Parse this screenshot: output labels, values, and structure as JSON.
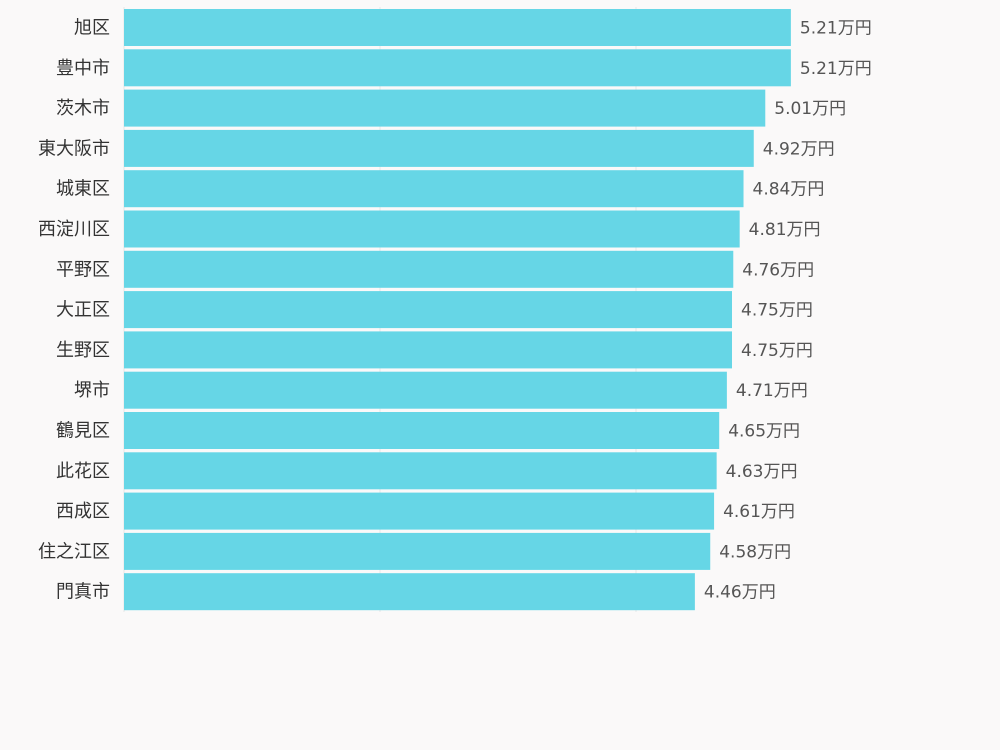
{
  "chart_data": {
    "type": "bar",
    "orientation": "horizontal",
    "categories": [
      "旭区",
      "豊中市",
      "茨木市",
      "東大阪市",
      "城東区",
      "西淀川区",
      "平野区",
      "大正区",
      "生野区",
      "堺市",
      "鶴見区",
      "此花区",
      "西成区",
      "住之江区",
      "門真市"
    ],
    "values": [
      5.21,
      5.21,
      5.01,
      4.92,
      4.84,
      4.81,
      4.76,
      4.75,
      4.75,
      4.71,
      4.65,
      4.63,
      4.61,
      4.58,
      4.46
    ],
    "value_labels": [
      "5.21万円",
      "5.21万円",
      "5.01万円",
      "4.92万円",
      "4.84万円",
      "4.81万円",
      "4.76万円",
      "4.75万円",
      "4.75万円",
      "4.71万円",
      "4.65万円",
      "4.63万円",
      "4.61万円",
      "4.58万円",
      "4.46万円"
    ],
    "unit": "万円",
    "title": "",
    "xlabel": "",
    "ylabel": "",
    "xlim": [
      0,
      5.5
    ],
    "grid": true,
    "legend": "none",
    "bar_color": "#66d6e6"
  }
}
